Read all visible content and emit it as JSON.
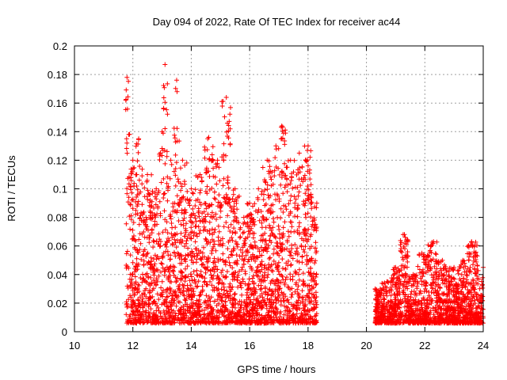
{
  "chart_data": {
    "type": "scatter",
    "title": "Day 094 of 2022, Rate Of TEC Index for receiver ac44",
    "xlabel": "GPS time / hours",
    "ylabel": "ROTI / TECUs",
    "xlim": [
      10,
      24
    ],
    "ylim": [
      0,
      0.2
    ],
    "xticks": [
      "10",
      "12",
      "14",
      "16",
      "18",
      "20",
      "22",
      "24"
    ],
    "yticks": [
      "0",
      "0.02",
      "0.04",
      "0.06",
      "0.08",
      "0.1",
      "0.12",
      "0.14",
      "0.16",
      "0.18",
      "0.2"
    ],
    "grid": true,
    "marker": "plus",
    "color": "#ff0000",
    "coverage": [
      {
        "x_start": 11.75,
        "x_end": 18.3
      },
      {
        "x_start": 20.3,
        "x_end": 24.0
      }
    ],
    "envelope": [
      {
        "x": 11.8,
        "y": 0.178
      },
      {
        "x": 12.0,
        "y": 0.12
      },
      {
        "x": 12.2,
        "y": 0.135
      },
      {
        "x": 12.5,
        "y": 0.11
      },
      {
        "x": 12.8,
        "y": 0.1
      },
      {
        "x": 13.0,
        "y": 0.14
      },
      {
        "x": 13.1,
        "y": 0.187
      },
      {
        "x": 13.3,
        "y": 0.12
      },
      {
        "x": 13.5,
        "y": 0.176
      },
      {
        "x": 13.7,
        "y": 0.12
      },
      {
        "x": 14.0,
        "y": 0.1
      },
      {
        "x": 14.3,
        "y": 0.11
      },
      {
        "x": 14.6,
        "y": 0.136
      },
      {
        "x": 14.9,
        "y": 0.12
      },
      {
        "x": 15.2,
        "y": 0.164
      },
      {
        "x": 15.5,
        "y": 0.1
      },
      {
        "x": 15.8,
        "y": 0.08
      },
      {
        "x": 16.0,
        "y": 0.09
      },
      {
        "x": 16.3,
        "y": 0.1
      },
      {
        "x": 16.6,
        "y": 0.12
      },
      {
        "x": 16.9,
        "y": 0.13
      },
      {
        "x": 17.1,
        "y": 0.144
      },
      {
        "x": 17.4,
        "y": 0.12
      },
      {
        "x": 17.7,
        "y": 0.125
      },
      {
        "x": 18.0,
        "y": 0.13
      },
      {
        "x": 18.3,
        "y": 0.09
      },
      {
        "x": 20.3,
        "y": 0.03
      },
      {
        "x": 20.7,
        "y": 0.035
      },
      {
        "x": 21.0,
        "y": 0.045
      },
      {
        "x": 21.3,
        "y": 0.068
      },
      {
        "x": 21.6,
        "y": 0.04
      },
      {
        "x": 21.9,
        "y": 0.055
      },
      {
        "x": 22.3,
        "y": 0.063
      },
      {
        "x": 22.6,
        "y": 0.05
      },
      {
        "x": 23.0,
        "y": 0.045
      },
      {
        "x": 23.3,
        "y": 0.05
      },
      {
        "x": 23.6,
        "y": 0.063
      },
      {
        "x": 24.0,
        "y": 0.045
      }
    ]
  }
}
